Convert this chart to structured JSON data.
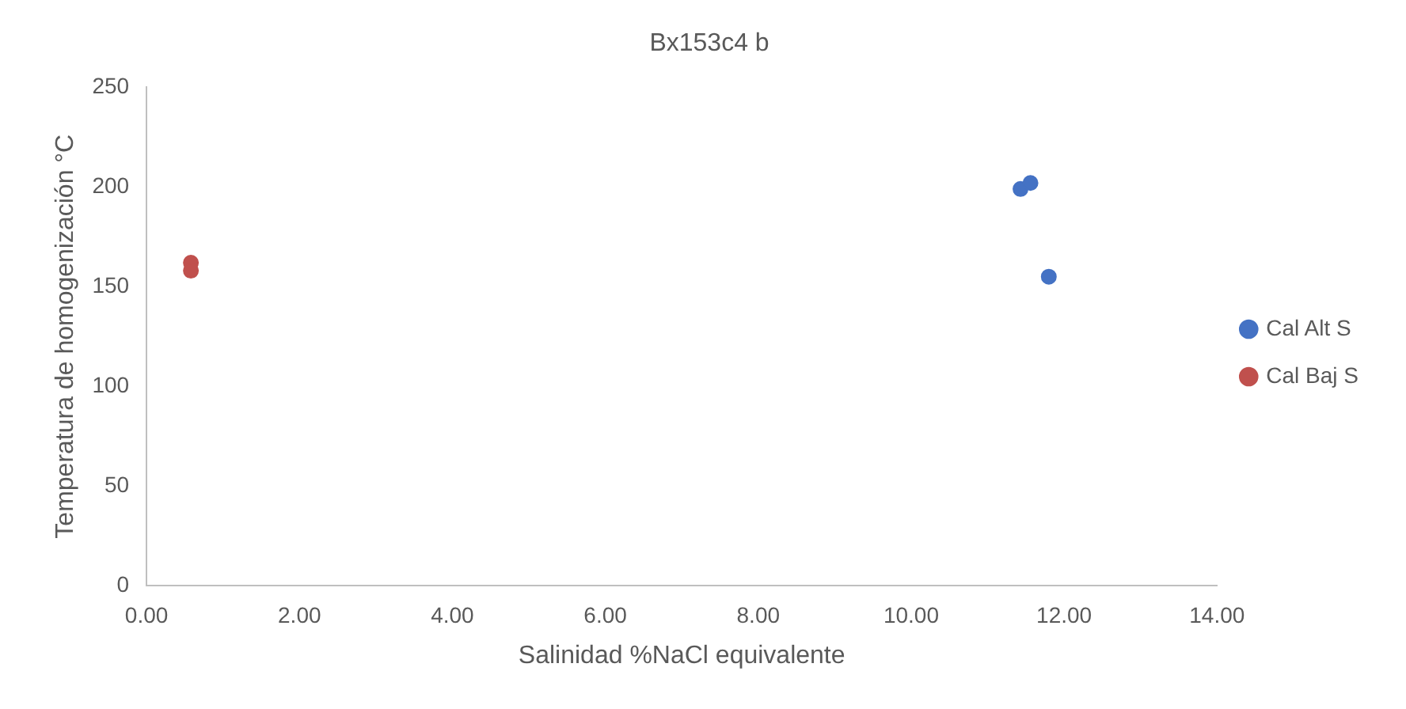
{
  "chart_data": {
    "type": "scatter",
    "title": "Bx153c4 b",
    "xlabel": "Salinidad %NaCl equivalente",
    "ylabel": "Temperatura de homogenización °C",
    "series": [
      {
        "name": "Cal Alt S",
        "color": "#4472c4",
        "x": [
          11.43,
          11.56,
          11.8
        ],
        "values": [
          199,
          202,
          155
        ]
      },
      {
        "name": "Cal Baj S",
        "color": "#c0504d",
        "x": [
          0.58,
          0.58
        ],
        "values": [
          162,
          158
        ]
      }
    ],
    "xlim": [
      0,
      14
    ],
    "xticks": [
      {
        "value": 0,
        "label": "0.00"
      },
      {
        "value": 2,
        "label": "2.00"
      },
      {
        "value": 4,
        "label": "4.00"
      },
      {
        "value": 6,
        "label": "6.00"
      },
      {
        "value": 8,
        "label": "8.00"
      },
      {
        "value": 10,
        "label": "10.00"
      },
      {
        "value": 12,
        "label": "12.00"
      },
      {
        "value": 14,
        "label": "14.00"
      }
    ],
    "ylim": [
      0,
      250
    ],
    "yticks": [
      0,
      50,
      100,
      150,
      200,
      250
    ],
    "grid": false,
    "legend": "right",
    "marker": "circle"
  }
}
